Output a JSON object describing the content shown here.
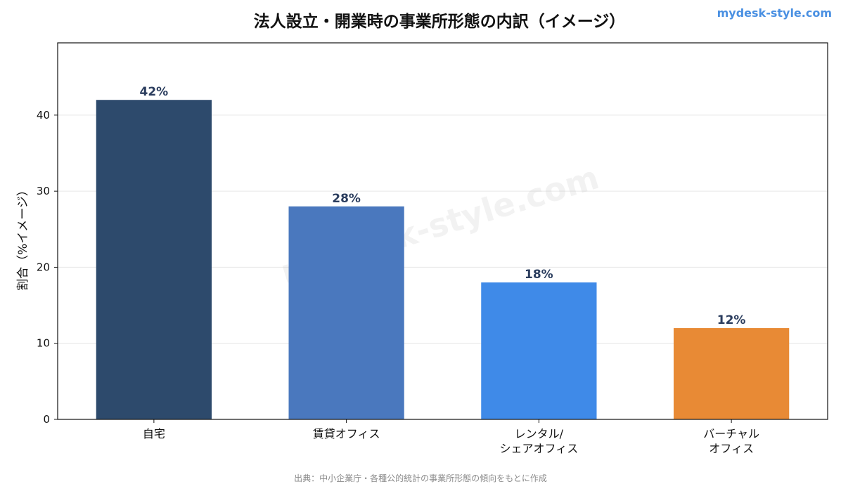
{
  "brand": "mydesk-style.com",
  "watermark": "mydesk-style.com",
  "source": "出典：中小企業庁・各種公的統計の事業所形態の傾向をもとに作成",
  "chart_data": {
    "type": "bar",
    "title": "法人設立・開業時の事業所形態の内訳（イメージ）",
    "xlabel": "",
    "ylabel": "割合（%イメージ）",
    "ylim": [
      0,
      49.5
    ],
    "yticks": [
      0,
      10,
      20,
      30,
      40
    ],
    "grid": true,
    "categories": [
      [
        "自宅"
      ],
      [
        "賃貸オフィス"
      ],
      [
        "レンタル/",
        "シェアオフィス"
      ],
      [
        "バーチャル",
        "オフィス"
      ]
    ],
    "values": [
      42,
      28,
      18,
      12
    ],
    "data_labels": [
      "42%",
      "28%",
      "18%",
      "12%"
    ],
    "colors": [
      "#2d4a6c",
      "#4a78be",
      "#3f8ae8",
      "#e88a35"
    ]
  }
}
